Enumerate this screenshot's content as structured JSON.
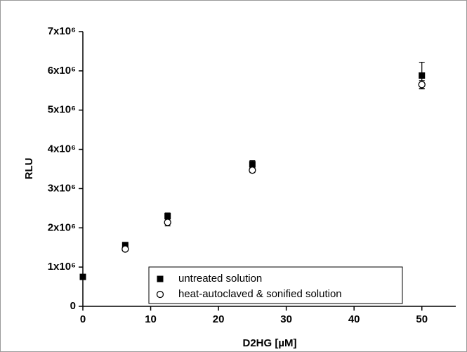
{
  "chart_data": {
    "type": "scatter",
    "x_label": "D2HG [µM]",
    "y_label": "RLU",
    "xlim": [
      0,
      55
    ],
    "ylim": [
      0,
      7000000
    ],
    "xticks": [
      0,
      10,
      20,
      30,
      40,
      50
    ],
    "yticks": [
      0,
      {
        "value": 1000000,
        "label": "1x10⁶"
      },
      {
        "value": 2000000,
        "label": "2x10⁶"
      },
      {
        "value": 3000000,
        "label": "3x10⁶"
      },
      {
        "value": 4000000,
        "label": "4x10⁶"
      },
      {
        "value": 5000000,
        "label": "5x10⁶"
      },
      {
        "value": 6000000,
        "label": "6x10⁶"
      },
      {
        "value": 7000000,
        "label": "7x10⁶"
      }
    ],
    "series": [
      {
        "name": "untreated solution",
        "marker": "filled-square",
        "color": "#000000",
        "x": [
          0,
          6.25,
          12.5,
          25,
          50
        ],
        "values": [
          750000,
          1560000,
          2300000,
          3620000,
          5880000
        ],
        "errors": [
          60000,
          70000,
          80000,
          90000,
          340000
        ]
      },
      {
        "name": "heat-autoclaved & sonified solution",
        "marker": "open-circle",
        "color": "#000000",
        "x": [
          6.25,
          12.5,
          25,
          50
        ],
        "values": [
          1460000,
          2140000,
          3470000,
          5650000
        ],
        "errors": [
          50000,
          90000,
          60000,
          100000
        ]
      }
    ],
    "legend": "bottom-center"
  }
}
